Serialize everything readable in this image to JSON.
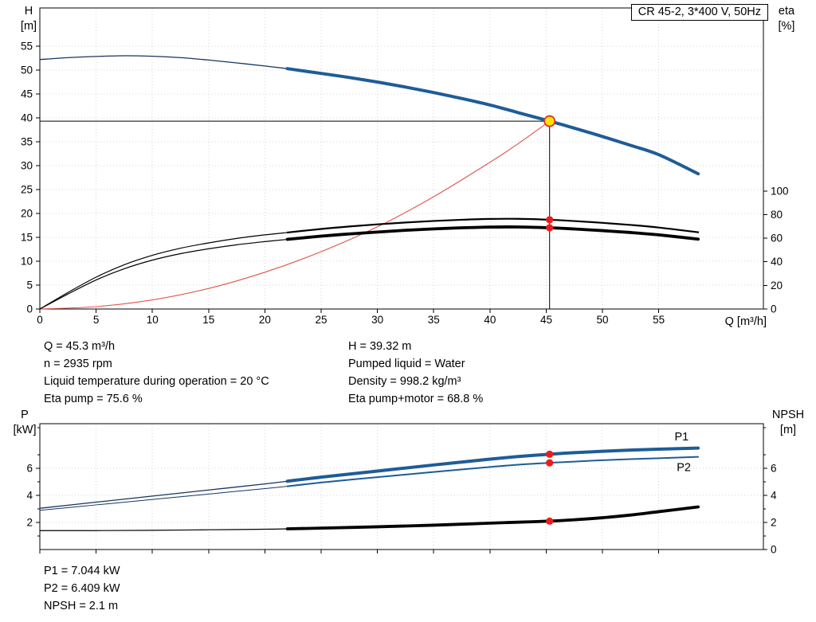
{
  "title_box": {
    "label": "CR 45-2, 3*400 V, 50Hz"
  },
  "axis_titles": {
    "top_left_1": "H",
    "top_left_2": "[m]",
    "top_right_1": "eta",
    "top_right_2": "[%]",
    "x": "Q [m³/h]",
    "bottom_left_1": "P",
    "bottom_left_2": "[kW]",
    "bottom_right_1": "NPSH",
    "bottom_right_2": "[m]"
  },
  "info_top": {
    "left": [
      "Q = 45.3 m³/h",
      "n = 2935 rpm",
      "Liquid temperature during operation = 20 °C",
      "Eta pump = 75.6 %"
    ],
    "right": [
      "H = 39.32 m",
      "Pumped liquid = Water",
      "Density = 998.2 kg/m³",
      "Eta pump+motor = 68.8 %"
    ]
  },
  "info_bottom": {
    "lines": [
      "P1 = 7.044 kW",
      "P2 = 6.409 kW",
      "NPSH = 2.1 m"
    ]
  },
  "colors": {
    "blue_thick": "#1e5c97",
    "blue_thin": "#17365d",
    "black": "#000000",
    "red_curve": "#e0534a",
    "dot": "#ed1c1c",
    "duty_fill": "#ffe600",
    "duty_ring": "#e03030",
    "grid": "#d6d6d6"
  },
  "chart_data": [
    {
      "id": "qh",
      "type": "line",
      "title": "CR 45-2, 3*400 V, 50Hz",
      "x_axis": {
        "label": "Q [m³/h]",
        "min": 0,
        "max": 64.3,
        "show_labels": true,
        "ticks": [
          0,
          5,
          10,
          15,
          20,
          25,
          30,
          35,
          40,
          45,
          50,
          55
        ]
      },
      "y_left": {
        "label": "H [m]",
        "min": 0,
        "max": 63,
        "ticks": [
          0,
          5,
          10,
          15,
          20,
          25,
          30,
          35,
          40,
          45,
          50,
          55
        ]
      },
      "y_right": {
        "label": "eta [%]",
        "min": 0,
        "max": 255,
        "ticks": [
          0,
          20,
          40,
          60,
          80,
          100
        ]
      },
      "grid": true,
      "crosshair": {
        "x": 45.3,
        "y": 39.32
      },
      "duty": {
        "Q": 45.3,
        "H": 39.32,
        "eta_pump": 75.6,
        "eta_pump_motor": 68.8
      },
      "series": [
        {
          "name": "head-curve-low",
          "axis": "left",
          "color": "#17365d",
          "width": 1.3,
          "points": [
            [
              0,
              52.2
            ],
            [
              2.5,
              52.6
            ],
            [
              5,
              52.85
            ],
            [
              7.5,
              53
            ],
            [
              10,
              52.9
            ],
            [
              12.5,
              52.6
            ],
            [
              15,
              52.1
            ],
            [
              17.5,
              51.5
            ],
            [
              20,
              50.85
            ],
            [
              22,
              50.3
            ]
          ]
        },
        {
          "name": "head-curve",
          "axis": "left",
          "color": "#1e5c97",
          "width": 4,
          "points": [
            [
              22,
              50.3
            ],
            [
              25,
              49.3
            ],
            [
              27.5,
              48.45
            ],
            [
              30,
              47.5
            ],
            [
              32.5,
              46.45
            ],
            [
              35,
              45.3
            ],
            [
              37.5,
              44.05
            ],
            [
              40,
              42.7
            ],
            [
              42.5,
              41.1
            ],
            [
              45.3,
              39.32
            ],
            [
              47.5,
              37.85
            ],
            [
              50,
              36.1
            ],
            [
              52.5,
              34.25
            ],
            [
              55,
              32.3
            ],
            [
              58.5,
              28.3
            ]
          ]
        },
        {
          "name": "system-curve",
          "axis": "left",
          "color": "#e0534a",
          "width": 1.1,
          "points": [
            [
              0,
              0
            ],
            [
              5,
              0.5
            ],
            [
              10,
              1.9
            ],
            [
              15,
              4.3
            ],
            [
              20,
              7.7
            ],
            [
              25,
              12
            ],
            [
              30,
              17.2
            ],
            [
              35,
              23.5
            ],
            [
              40,
              30.7
            ],
            [
              42.5,
              34.6
            ],
            [
              45.3,
              39.32
            ]
          ]
        },
        {
          "name": "eta-pump-low",
          "axis": "right",
          "color": "#000000",
          "width": 1.2,
          "points": [
            [
              0,
              0
            ],
            [
              2.5,
              14
            ],
            [
              5,
              27
            ],
            [
              7.5,
              37.5
            ],
            [
              10,
              45.5
            ],
            [
              12.5,
              51.5
            ],
            [
              15,
              56
            ],
            [
              17.5,
              59.8
            ],
            [
              20,
              62.8
            ],
            [
              22,
              64.8
            ]
          ]
        },
        {
          "name": "eta-pump",
          "axis": "right",
          "color": "#000000",
          "width": 2.2,
          "points": [
            [
              22,
              64.8
            ],
            [
              25,
              67.8
            ],
            [
              27.5,
              69.9
            ],
            [
              30,
              71.7
            ],
            [
              32.5,
              73.3
            ],
            [
              35,
              74.6
            ],
            [
              37.5,
              75.6
            ],
            [
              40,
              76.3
            ],
            [
              42.5,
              76.4
            ],
            [
              45.3,
              75.6
            ],
            [
              47.5,
              74.5
            ],
            [
              50,
              73
            ],
            [
              52.5,
              71.2
            ],
            [
              55,
              69
            ],
            [
              58.5,
              65
            ]
          ]
        },
        {
          "name": "eta-pump-motor-low",
          "axis": "right",
          "color": "#000000",
          "width": 1.2,
          "points": [
            [
              0,
              0
            ],
            [
              2.5,
              12.7
            ],
            [
              5,
              24.6
            ],
            [
              7.5,
              34.1
            ],
            [
              10,
              41.4
            ],
            [
              12.5,
              46.9
            ],
            [
              15,
              51
            ],
            [
              17.5,
              54.4
            ],
            [
              20,
              57.1
            ],
            [
              22,
              59
            ]
          ]
        },
        {
          "name": "eta-pump-motor",
          "axis": "right",
          "color": "#000000",
          "width": 3.8,
          "points": [
            [
              22,
              59
            ],
            [
              25,
              61.7
            ],
            [
              27.5,
              63.6
            ],
            [
              30,
              65.2
            ],
            [
              32.5,
              66.7
            ],
            [
              35,
              67.9
            ],
            [
              37.5,
              68.8
            ],
            [
              40,
              69.4
            ],
            [
              42.5,
              69.5
            ],
            [
              45.3,
              68.8
            ],
            [
              47.5,
              67.8
            ],
            [
              50,
              66.4
            ],
            [
              52.5,
              64.8
            ],
            [
              55,
              62.8
            ],
            [
              58.5,
              59.2
            ]
          ]
        }
      ],
      "markers": [
        {
          "name": "duty-point",
          "axis": "left",
          "x": 45.3,
          "y": 39.32,
          "style": "duty"
        },
        {
          "name": "eta-pump-point",
          "axis": "right",
          "x": 45.3,
          "y": 75.6,
          "style": "dot"
        },
        {
          "name": "eta-pump-motor-point",
          "axis": "right",
          "x": 45.3,
          "y": 68.8,
          "style": "dot"
        }
      ],
      "labels": []
    },
    {
      "id": "power-npsh",
      "type": "line",
      "title": "",
      "x_axis": {
        "label": "",
        "min": 0,
        "max": 64.3,
        "show_labels": false,
        "ticks": [
          0,
          5,
          10,
          15,
          20,
          25,
          30,
          35,
          40,
          45,
          50,
          55
        ]
      },
      "y_left": {
        "label": "P [kW]",
        "min": 0,
        "max": 9.3,
        "ticks": [
          2,
          4,
          6
        ],
        "minor_ticks": [
          1,
          3,
          5,
          7,
          9
        ]
      },
      "y_right": {
        "label": "NPSH [m]",
        "min": 0,
        "max": 9.3,
        "ticks": [
          0,
          2,
          4,
          6
        ],
        "minor_ticks": [
          1,
          3,
          5,
          7,
          9
        ]
      },
      "grid": true,
      "duty": {
        "Q": 45.3,
        "P1": 7.044,
        "P2": 6.409,
        "NPSH": 2.1
      },
      "series": [
        {
          "name": "p1-low",
          "axis": "left",
          "color": "#17365d",
          "width": 1.3,
          "points": [
            [
              0,
              3.05
            ],
            [
              5,
              3.5
            ],
            [
              10,
              3.95
            ],
            [
              15,
              4.4
            ],
            [
              20,
              4.85
            ],
            [
              22,
              5.05
            ]
          ]
        },
        {
          "name": "p1",
          "axis": "left",
          "color": "#1e5c97",
          "width": 4,
          "points": [
            [
              22,
              5.05
            ],
            [
              25,
              5.35
            ],
            [
              30,
              5.8
            ],
            [
              35,
              6.25
            ],
            [
              40,
              6.68
            ],
            [
              42.5,
              6.87
            ],
            [
              45.3,
              7.044
            ],
            [
              47.5,
              7.16
            ],
            [
              50,
              7.26
            ],
            [
              52.5,
              7.35
            ],
            [
              55,
              7.42
            ],
            [
              58.5,
              7.5
            ]
          ]
        },
        {
          "name": "p2-low",
          "axis": "left",
          "color": "#17365d",
          "width": 1,
          "points": [
            [
              0,
              2.9
            ],
            [
              5,
              3.3
            ],
            [
              10,
              3.7
            ],
            [
              15,
              4.1
            ],
            [
              20,
              4.5
            ],
            [
              22,
              4.67
            ]
          ]
        },
        {
          "name": "p2",
          "axis": "left",
          "color": "#1e5c97",
          "width": 2,
          "points": [
            [
              22,
              4.67
            ],
            [
              25,
              4.95
            ],
            [
              30,
              5.35
            ],
            [
              35,
              5.73
            ],
            [
              40,
              6.1
            ],
            [
              42.5,
              6.27
            ],
            [
              45.3,
              6.409
            ],
            [
              47.5,
              6.5
            ],
            [
              50,
              6.6
            ],
            [
              52.5,
              6.68
            ],
            [
              55,
              6.75
            ],
            [
              58.5,
              6.85
            ]
          ]
        },
        {
          "name": "npsh-low",
          "axis": "right",
          "color": "#000000",
          "width": 1.2,
          "points": [
            [
              0,
              1.4
            ],
            [
              5,
              1.4
            ],
            [
              10,
              1.42
            ],
            [
              15,
              1.46
            ],
            [
              20,
              1.5
            ],
            [
              22,
              1.53
            ]
          ]
        },
        {
          "name": "npsh",
          "axis": "right",
          "color": "#000000",
          "width": 3.8,
          "points": [
            [
              22,
              1.53
            ],
            [
              25,
              1.58
            ],
            [
              30,
              1.68
            ],
            [
              35,
              1.8
            ],
            [
              40,
              1.95
            ],
            [
              42.5,
              2.02
            ],
            [
              45.3,
              2.1
            ],
            [
              47.5,
              2.2
            ],
            [
              50,
              2.35
            ],
            [
              52.5,
              2.55
            ],
            [
              55,
              2.8
            ],
            [
              58.5,
              3.15
            ]
          ]
        }
      ],
      "markers": [
        {
          "name": "p1-point",
          "axis": "left",
          "x": 45.3,
          "y": 7.044,
          "style": "dot"
        },
        {
          "name": "p2-point",
          "axis": "left",
          "x": 45.3,
          "y": 6.409,
          "style": "dot"
        },
        {
          "name": "npsh-point",
          "axis": "right",
          "x": 45.3,
          "y": 2.1,
          "style": "dot"
        }
      ],
      "labels": [
        {
          "text": "P1",
          "x": 56.4,
          "y": 8.05,
          "color": "#1e5c97"
        },
        {
          "text": "P2",
          "x": 56.6,
          "y": 5.8,
          "color": "#1e5c97"
        }
      ]
    }
  ]
}
